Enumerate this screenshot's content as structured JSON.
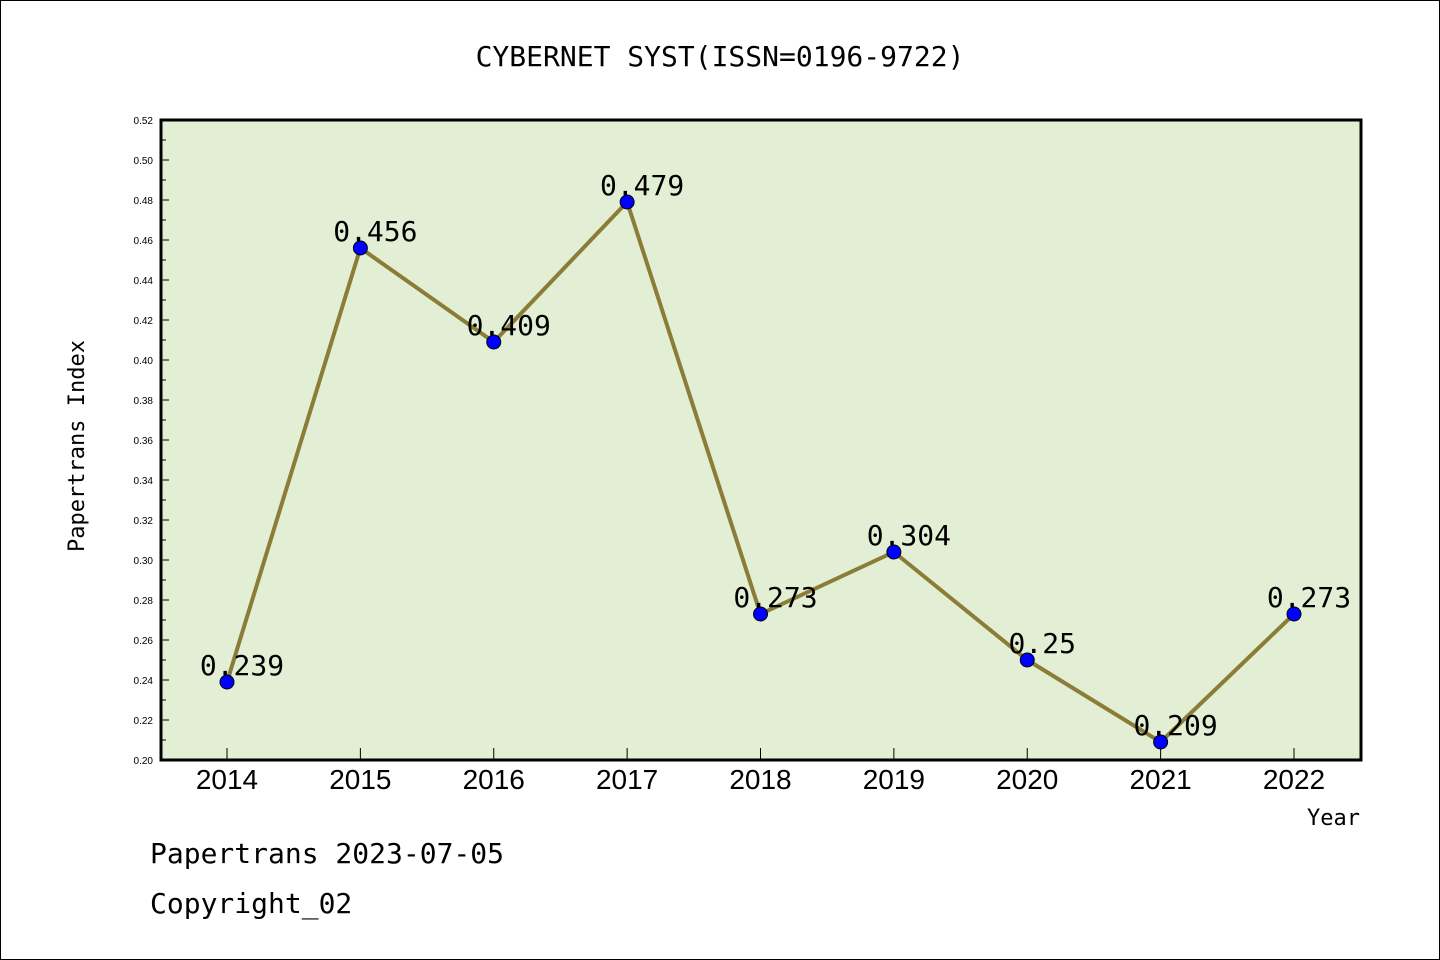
{
  "chart_data": {
    "type": "line",
    "title": "CYBERNET SYST(ISSN=0196-9722)",
    "xlabel": "Year",
    "ylabel": "Papertrans Index",
    "categories": [
      "2014",
      "2015",
      "2016",
      "2017",
      "2018",
      "2019",
      "2020",
      "2021",
      "2022"
    ],
    "series": [
      {
        "values": [
          0.239,
          0.456,
          0.409,
          0.479,
          0.273,
          0.304,
          0.25,
          0.209,
          0.273
        ],
        "labels": [
          "0.239",
          "0.456",
          "0.409",
          "0.479",
          "0.273",
          "0.304",
          "0.25",
          "0.209",
          "0.273"
        ]
      }
    ],
    "ylim": [
      0.2,
      0.52
    ],
    "yticks": [
      "0.20",
      "0.22",
      "0.24",
      "0.26",
      "0.28",
      "0.30",
      "0.32",
      "0.34",
      "0.36",
      "0.38",
      "0.40",
      "0.42",
      "0.44",
      "0.46",
      "0.48",
      "0.50",
      "0.52"
    ],
    "grid": false,
    "legend": "none",
    "colors": {
      "plot_background": "#e2efd5",
      "line": "#8b7d37",
      "marker": "#0000ff"
    }
  },
  "footer": {
    "line1": "Papertrans 2023-07-05",
    "line2": "Copyright_02"
  }
}
